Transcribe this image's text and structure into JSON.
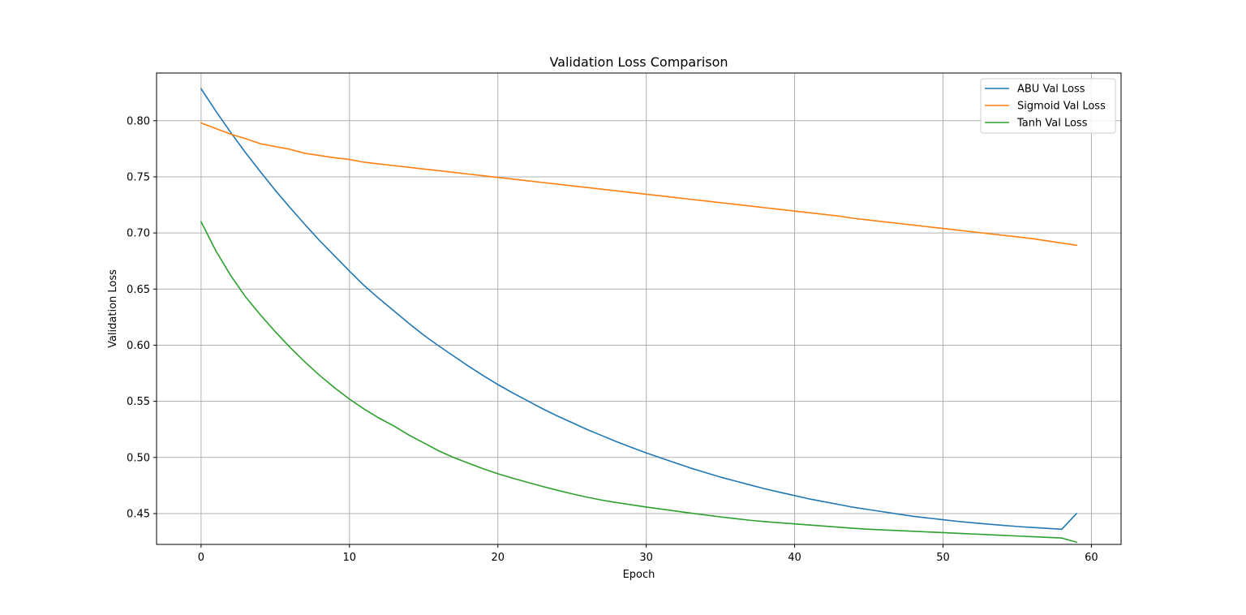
{
  "chart_data": {
    "type": "line",
    "title": "Validation Loss Comparison",
    "xlabel": "Epoch",
    "ylabel": "Validation Loss",
    "xlim": [
      -3,
      62
    ],
    "ylim": [
      0.4225,
      0.8425
    ],
    "xticks": [
      0,
      10,
      20,
      30,
      40,
      50,
      60
    ],
    "yticks": [
      0.45,
      0.5,
      0.55,
      0.6,
      0.65,
      0.7,
      0.75,
      0.8
    ],
    "ytick_decimals": 2,
    "grid": true,
    "legend_position": "top-right",
    "x": [
      0,
      1,
      2,
      3,
      4,
      5,
      6,
      7,
      8,
      9,
      10,
      11,
      12,
      13,
      14,
      15,
      16,
      17,
      18,
      19,
      20,
      21,
      22,
      23,
      24,
      25,
      26,
      27,
      28,
      29,
      30,
      31,
      32,
      33,
      34,
      35,
      36,
      37,
      38,
      39,
      40,
      41,
      42,
      43,
      44,
      45,
      46,
      47,
      48,
      49,
      50,
      51,
      52,
      53,
      54,
      55,
      56,
      57,
      58,
      59
    ],
    "series": [
      {
        "name": "ABU Val Loss",
        "color": "#1f77b4",
        "values": [
          0.8285,
          0.8085,
          0.7895,
          0.7715,
          0.7545,
          0.738,
          0.7225,
          0.7075,
          0.693,
          0.6795,
          0.666,
          0.653,
          0.6415,
          0.6305,
          0.6195,
          0.609,
          0.5995,
          0.5905,
          0.5815,
          0.573,
          0.565,
          0.5575,
          0.5505,
          0.5435,
          0.537,
          0.531,
          0.525,
          0.5195,
          0.514,
          0.509,
          0.504,
          0.4995,
          0.495,
          0.4905,
          0.4865,
          0.4825,
          0.479,
          0.4755,
          0.472,
          0.469,
          0.466,
          0.463,
          0.4605,
          0.458,
          0.4555,
          0.4535,
          0.4515,
          0.4495,
          0.4475,
          0.446,
          0.4445,
          0.443,
          0.4418,
          0.4406,
          0.4395,
          0.4385,
          0.4376,
          0.4368,
          0.436,
          0.45
        ]
      },
      {
        "name": "Sigmoid Val Loss",
        "color": "#ff7f0e",
        "values": [
          0.798,
          0.793,
          0.788,
          0.784,
          0.7795,
          0.777,
          0.7745,
          0.771,
          0.769,
          0.767,
          0.7655,
          0.763,
          0.7615,
          0.76,
          0.7585,
          0.757,
          0.7555,
          0.754,
          0.7525,
          0.751,
          0.7495,
          0.748,
          0.7465,
          0.745,
          0.7435,
          0.742,
          0.7405,
          0.739,
          0.7375,
          0.736,
          0.7345,
          0.733,
          0.7315,
          0.73,
          0.7285,
          0.727,
          0.7255,
          0.724,
          0.7225,
          0.721,
          0.7195,
          0.718,
          0.7165,
          0.715,
          0.713,
          0.7115,
          0.71,
          0.7085,
          0.707,
          0.7055,
          0.704,
          0.7025,
          0.701,
          0.6995,
          0.698,
          0.6965,
          0.695,
          0.693,
          0.691,
          0.689
        ]
      },
      {
        "name": "Tanh Val Loss",
        "color": "#2ca02c",
        "values": [
          0.71,
          0.684,
          0.662,
          0.643,
          0.627,
          0.612,
          0.598,
          0.585,
          0.573,
          0.562,
          0.552,
          0.543,
          0.535,
          0.528,
          0.52,
          0.513,
          0.506,
          0.5,
          0.495,
          0.49,
          0.4855,
          0.4815,
          0.4778,
          0.4742,
          0.4708,
          0.4676,
          0.4646,
          0.462,
          0.4598,
          0.4578,
          0.4558,
          0.454,
          0.4522,
          0.4504,
          0.4487,
          0.447,
          0.4455,
          0.444,
          0.4428,
          0.4418,
          0.4408,
          0.4398,
          0.4388,
          0.4378,
          0.4368,
          0.436,
          0.4354,
          0.4348,
          0.4342,
          0.4336,
          0.433,
          0.4324,
          0.4318,
          0.4312,
          0.4306,
          0.43,
          0.4294,
          0.4288,
          0.4282,
          0.4245
        ]
      }
    ]
  }
}
